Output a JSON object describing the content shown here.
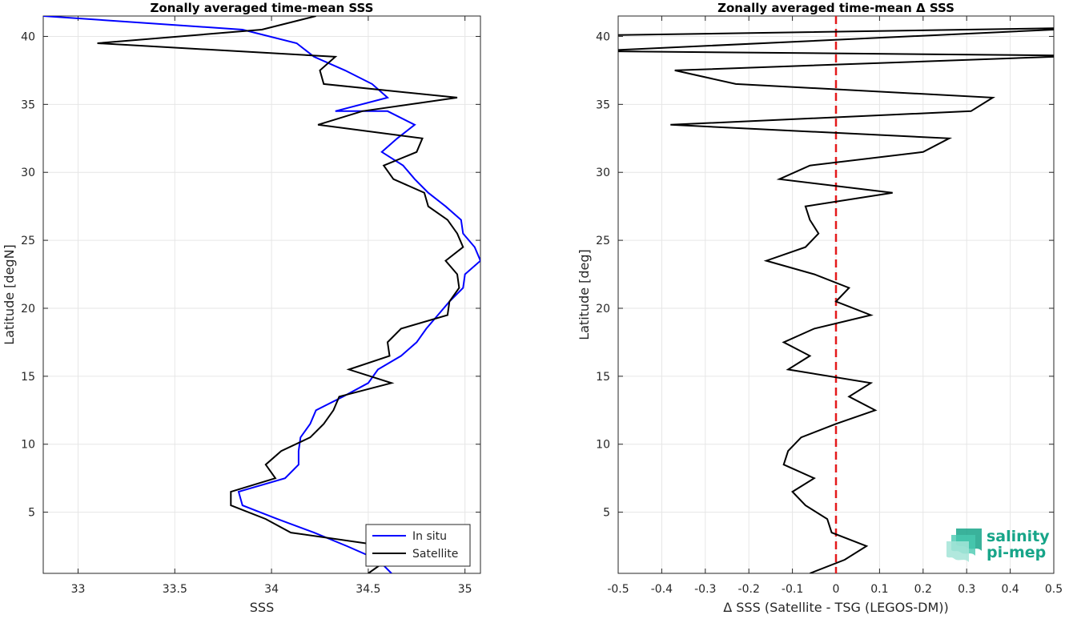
{
  "chart_data": [
    {
      "type": "line",
      "title": "Zonally averaged time-mean SSS",
      "xlabel": "SSS",
      "ylabel": "Latitude [degN]",
      "xlim": [
        32.82,
        35.08
      ],
      "ylim": [
        0.5,
        41.5
      ],
      "xticks": [
        33,
        33.5,
        34,
        34.5,
        35
      ],
      "xtick_labels": [
        "33",
        "33.5",
        "34",
        "34.5",
        "35"
      ],
      "yticks": [
        5,
        10,
        15,
        20,
        25,
        30,
        35,
        40
      ],
      "ytick_labels": [
        "5",
        "10",
        "15",
        "20",
        "25",
        "30",
        "35",
        "40"
      ],
      "grid": true,
      "legend_position": "bottom-right",
      "series": [
        {
          "name": "In situ",
          "color": "#0000ff",
          "points": [
            [
              34.62,
              0.5
            ],
            [
              34.55,
              1.5
            ],
            [
              34.39,
              2.5
            ],
            [
              34.22,
              3.5
            ],
            [
              34.03,
              4.5
            ],
            [
              33.85,
              5.5
            ],
            [
              33.83,
              6.5
            ],
            [
              34.07,
              7.5
            ],
            [
              34.14,
              8.5
            ],
            [
              34.14,
              9.5
            ],
            [
              34.15,
              10.5
            ],
            [
              34.2,
              11.5
            ],
            [
              34.23,
              12.5
            ],
            [
              34.37,
              13.5
            ],
            [
              34.5,
              14.5
            ],
            [
              34.55,
              15.5
            ],
            [
              34.67,
              16.5
            ],
            [
              34.75,
              17.5
            ],
            [
              34.8,
              18.5
            ],
            [
              34.86,
              19.5
            ],
            [
              34.92,
              20.5
            ],
            [
              34.99,
              21.5
            ],
            [
              35.0,
              22.5
            ],
            [
              35.08,
              23.5
            ],
            [
              35.05,
              24.5
            ],
            [
              34.99,
              25.5
            ],
            [
              34.98,
              26.5
            ],
            [
              34.9,
              27.5
            ],
            [
              34.81,
              28.5
            ],
            [
              34.74,
              29.5
            ],
            [
              34.68,
              30.5
            ],
            [
              34.57,
              31.5
            ],
            [
              34.65,
              32.5
            ],
            [
              34.74,
              33.5
            ],
            [
              34.6,
              34.5
            ],
            [
              34.33,
              34.5
            ],
            [
              34.6,
              35.5
            ],
            [
              34.52,
              36.5
            ],
            [
              34.38,
              37.5
            ],
            [
              34.22,
              38.5
            ],
            [
              34.13,
              39.5
            ],
            [
              33.85,
              40.5
            ],
            [
              32.82,
              41.5
            ]
          ]
        },
        {
          "name": "Satellite",
          "color": "#000000",
          "points": [
            [
              34.5,
              0.5
            ],
            [
              34.6,
              1.5
            ],
            [
              34.59,
              2.5
            ],
            [
              34.1,
              3.5
            ],
            [
              33.97,
              4.5
            ],
            [
              33.79,
              5.5
            ],
            [
              33.79,
              6.5
            ],
            [
              34.02,
              7.5
            ],
            [
              33.97,
              8.5
            ],
            [
              34.05,
              9.5
            ],
            [
              34.2,
              10.5
            ],
            [
              34.27,
              11.5
            ],
            [
              34.32,
              12.5
            ],
            [
              34.35,
              13.5
            ],
            [
              34.62,
              14.5
            ],
            [
              34.4,
              15.5
            ],
            [
              34.61,
              16.5
            ],
            [
              34.6,
              17.5
            ],
            [
              34.67,
              18.5
            ],
            [
              34.91,
              19.5
            ],
            [
              34.92,
              20.5
            ],
            [
              34.97,
              21.5
            ],
            [
              34.96,
              22.5
            ],
            [
              34.9,
              23.5
            ],
            [
              34.99,
              24.5
            ],
            [
              34.96,
              25.5
            ],
            [
              34.91,
              26.5
            ],
            [
              34.81,
              27.5
            ],
            [
              34.79,
              28.5
            ],
            [
              34.63,
              29.5
            ],
            [
              34.58,
              30.5
            ],
            [
              34.75,
              31.5
            ],
            [
              34.78,
              32.5
            ],
            [
              34.24,
              33.5
            ],
            [
              34.47,
              34.5
            ],
            [
              34.96,
              35.5
            ],
            [
              34.27,
              36.5
            ],
            [
              34.25,
              37.5
            ],
            [
              34.33,
              38.5
            ],
            [
              33.1,
              39.5
            ],
            [
              33.95,
              40.5
            ],
            [
              34.23,
              41.5
            ]
          ]
        }
      ]
    },
    {
      "type": "line",
      "title": "Zonally averaged time-mean Δ SSS",
      "xlabel": "Δ SSS (Satellite - TSG (LEGOS-DM))",
      "ylabel": "Latitude [deg]",
      "xlim": [
        -0.5,
        0.5
      ],
      "ylim": [
        0.5,
        41.5
      ],
      "xticks": [
        -0.5,
        -0.4,
        -0.3,
        -0.2,
        -0.1,
        0,
        0.1,
        0.2,
        0.3,
        0.4,
        0.5
      ],
      "xtick_labels": [
        "-0.5",
        "-0.4",
        "-0.3",
        "-0.2",
        "-0.1",
        "0",
        "0.1",
        "0.2",
        "0.3",
        "0.4",
        "0.5"
      ],
      "yticks": [
        5,
        10,
        15,
        20,
        25,
        30,
        35,
        40
      ],
      "ytick_labels": [
        "5",
        "10",
        "15",
        "20",
        "25",
        "30",
        "35",
        "40"
      ],
      "grid": true,
      "reference_line": {
        "x": 0,
        "color": "#e41a1c",
        "style": "dashed"
      },
      "series": [
        {
          "name": "",
          "color": "#000000",
          "points": [
            [
              -0.06,
              0.5
            ],
            [
              0.02,
              1.5
            ],
            [
              0.07,
              2.5
            ],
            [
              -0.01,
              3.5
            ],
            [
              -0.02,
              4.5
            ],
            [
              -0.07,
              5.5
            ],
            [
              -0.1,
              6.5
            ],
            [
              -0.05,
              7.5
            ],
            [
              -0.12,
              8.5
            ],
            [
              -0.11,
              9.5
            ],
            [
              -0.08,
              10.5
            ],
            [
              0.0,
              11.5
            ],
            [
              0.09,
              12.5
            ],
            [
              0.03,
              13.5
            ],
            [
              0.08,
              14.5
            ],
            [
              -0.11,
              15.5
            ],
            [
              -0.06,
              16.5
            ],
            [
              -0.12,
              17.5
            ],
            [
              -0.05,
              18.5
            ],
            [
              0.08,
              19.5
            ],
            [
              0.0,
              20.5
            ],
            [
              0.03,
              21.5
            ],
            [
              -0.05,
              22.5
            ],
            [
              -0.16,
              23.5
            ],
            [
              -0.07,
              24.5
            ],
            [
              -0.04,
              25.5
            ],
            [
              -0.06,
              26.5
            ],
            [
              -0.07,
              27.5
            ],
            [
              0.13,
              28.5
            ],
            [
              -0.13,
              29.5
            ],
            [
              -0.06,
              30.5
            ],
            [
              0.2,
              31.5
            ],
            [
              0.26,
              32.5
            ],
            [
              -0.38,
              33.5
            ],
            [
              0.31,
              34.5
            ],
            [
              0.36,
              35.5
            ],
            [
              -0.23,
              36.5
            ],
            [
              -0.37,
              37.5
            ],
            [
              0.5,
              38.5
            ],
            [
              0.5,
              38.6
            ],
            [
              -0.5,
              38.9
            ],
            [
              -0.5,
              39.0
            ],
            [
              0.5,
              40.5
            ],
            [
              0.5,
              40.6
            ],
            [
              -0.5,
              40.1
            ]
          ]
        }
      ]
    }
  ],
  "legend": {
    "items": [
      {
        "label": "In situ",
        "color": "#0000ff"
      },
      {
        "label": "Satellite",
        "color": "#000000"
      }
    ]
  },
  "logo": {
    "line1": "salinity",
    "line2": "pi-mep",
    "icon": "wave-stack-icon",
    "color": "#17a589"
  }
}
